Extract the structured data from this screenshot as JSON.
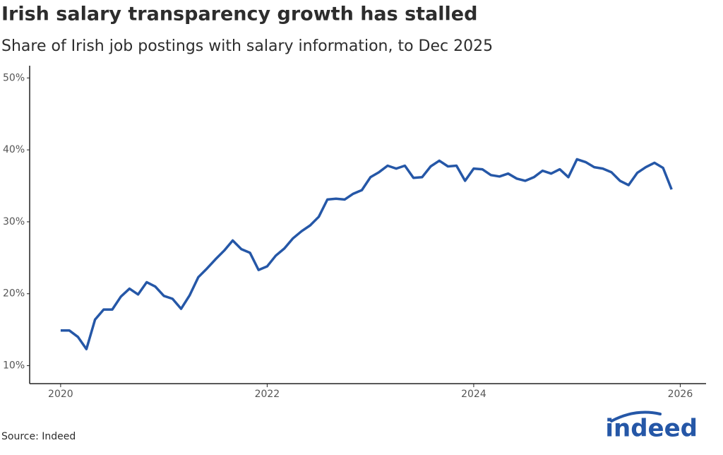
{
  "chart_data": {
    "type": "line",
    "title": "Irish salary transparency growth has stalled",
    "subtitle": "Share of Irish job postings with salary information, to Dec 2025",
    "source": "Source: Indeed",
    "logo": "indeed",
    "x": [
      "2020-01",
      "2020-02",
      "2020-03",
      "2020-04",
      "2020-05",
      "2020-06",
      "2020-07",
      "2020-08",
      "2020-09",
      "2020-10",
      "2020-11",
      "2020-12",
      "2021-01",
      "2021-02",
      "2021-03",
      "2021-04",
      "2021-05",
      "2021-06",
      "2021-07",
      "2021-08",
      "2021-09",
      "2021-10",
      "2021-11",
      "2021-12",
      "2022-01",
      "2022-02",
      "2022-03",
      "2022-04",
      "2022-05",
      "2022-06",
      "2022-07",
      "2022-08",
      "2022-09",
      "2022-10",
      "2022-11",
      "2022-12",
      "2023-01",
      "2023-02",
      "2023-03",
      "2023-04",
      "2023-05",
      "2023-06",
      "2023-07",
      "2023-08",
      "2023-09",
      "2023-10",
      "2023-11",
      "2023-12",
      "2024-01",
      "2024-02",
      "2024-03",
      "2024-04",
      "2024-05",
      "2024-06",
      "2024-07",
      "2024-08",
      "2024-09",
      "2024-10",
      "2024-11",
      "2024-12",
      "2025-01",
      "2025-02",
      "2025-03",
      "2025-04",
      "2025-05",
      "2025-06",
      "2025-07",
      "2025-08",
      "2025-09",
      "2025-10",
      "2025-11",
      "2025-12"
    ],
    "series": [
      {
        "name": "Share of postings with salary information",
        "color": "#2557a7",
        "values": [
          14.9,
          14.9,
          14.0,
          12.3,
          16.4,
          17.8,
          17.8,
          19.6,
          20.7,
          19.9,
          21.6,
          21.0,
          19.7,
          19.3,
          17.9,
          19.8,
          22.3,
          23.5,
          24.8,
          26.0,
          27.4,
          26.2,
          25.7,
          23.3,
          23.8,
          25.3,
          26.3,
          27.7,
          28.7,
          29.5,
          30.7,
          33.1,
          33.2,
          33.1,
          33.9,
          34.4,
          36.2,
          36.9,
          37.8,
          37.4,
          37.8,
          36.1,
          36.2,
          37.7,
          38.5,
          37.7,
          37.8,
          35.7,
          37.4,
          37.3,
          36.5,
          36.3,
          36.7,
          36.0,
          35.7,
          36.2,
          37.1,
          36.7,
          37.3,
          36.2,
          38.7,
          38.3,
          37.6,
          37.4,
          36.9,
          35.7,
          35.1,
          36.8,
          37.6,
          38.2,
          37.5,
          34.5
        ]
      }
    ],
    "xlim": [
      2019.7,
      2026.25
    ],
    "xticks": [
      2020,
      2022,
      2024,
      2026
    ],
    "ylim": [
      7.5,
      51.7
    ],
    "yticks": [
      {
        "value": 10,
        "label": "10%"
      },
      {
        "value": 20,
        "label": "20%"
      },
      {
        "value": 30,
        "label": "30%"
      },
      {
        "value": 40,
        "label": "40%"
      },
      {
        "value": 50,
        "label": "50%"
      }
    ],
    "grid": false
  }
}
